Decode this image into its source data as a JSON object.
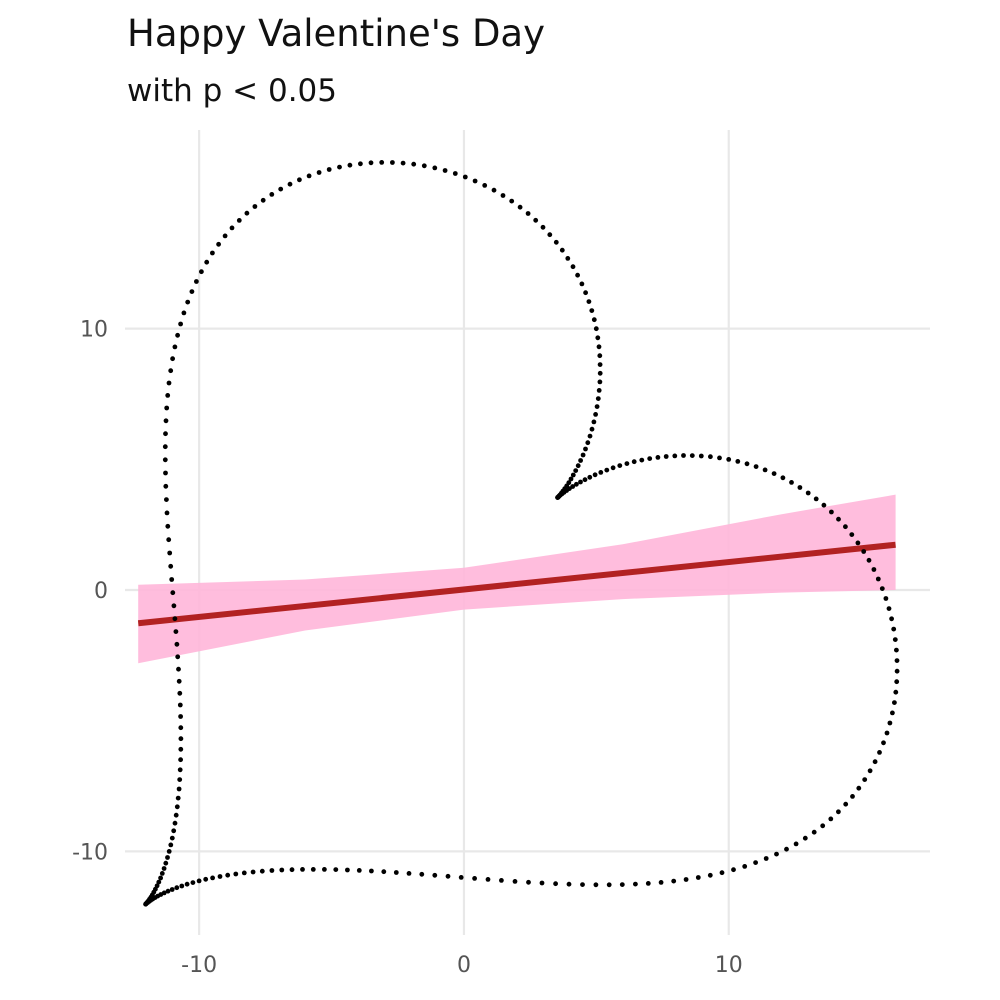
{
  "chart_data": {
    "type": "scatter",
    "title": "Happy Valentine's Day",
    "subtitle": "with p < 0.05",
    "xlabel": "",
    "ylabel": "",
    "xlim": [
      -12.8,
      17.6
    ],
    "ylim": [
      -13.2,
      17.6
    ],
    "x_ticks": [
      -10,
      0,
      10
    ],
    "x_tick_labels": [
      "-10",
      "0",
      "10"
    ],
    "y_ticks": [
      -10,
      0,
      10
    ],
    "y_tick_labels": [
      "-10",
      "0",
      "10"
    ],
    "grid": true,
    "points_description_shape": "heart",
    "heart_point_count": 300,
    "colors": {
      "points": "#000000",
      "fit_line": "#b22222",
      "ribbon": "#ffb6d9",
      "grid": "#e8e8e8"
    },
    "fit": {
      "method": "lm",
      "x_range": [
        -12.3,
        16.3
      ],
      "slope": 0.105,
      "intercept": 0.02,
      "ribbon": [
        {
          "x": -12.3,
          "lower": -2.8,
          "upper": 0.2
        },
        {
          "x": -6,
          "lower": -1.55,
          "upper": 0.4
        },
        {
          "x": 0,
          "lower": -0.75,
          "upper": 0.85
        },
        {
          "x": 6,
          "lower": -0.35,
          "upper": 1.75
        },
        {
          "x": 12,
          "lower": -0.1,
          "upper": 2.9
        },
        {
          "x": 16.3,
          "lower": 0.0,
          "upper": 3.65
        }
      ]
    }
  }
}
